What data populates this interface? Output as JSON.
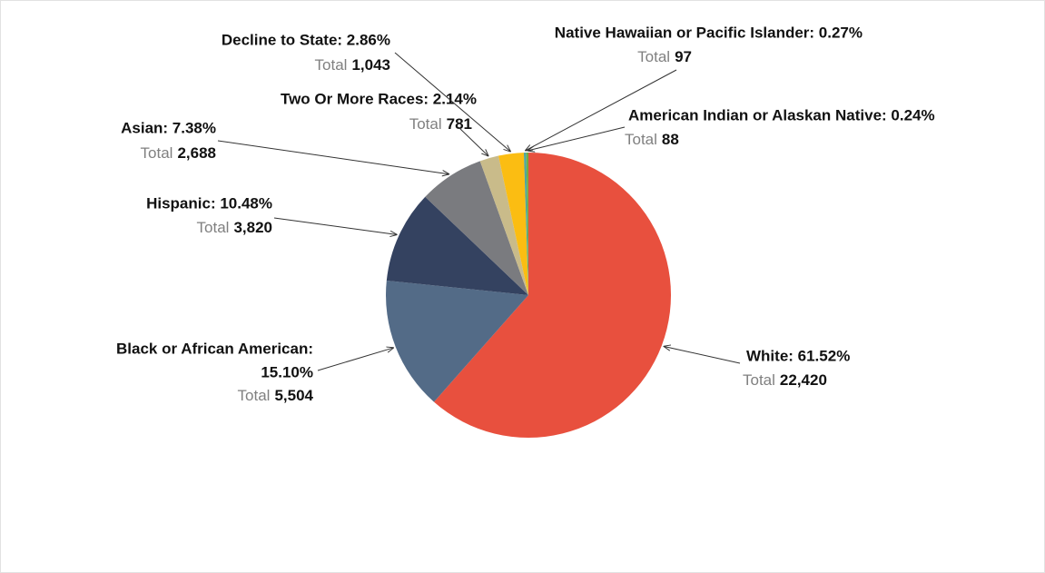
{
  "chart_data": {
    "type": "pie",
    "categories": [
      "White",
      "Black or African American",
      "Hispanic",
      "Asian",
      "Two Or More Races",
      "Decline to State",
      "Native Hawaiian or Pacific Islander",
      "American Indian or Alaskan Native"
    ],
    "values": [
      61.52,
      15.1,
      10.48,
      7.38,
      2.14,
      2.86,
      0.27,
      0.24
    ],
    "labels": [
      [
        "White: 61.52%"
      ],
      [
        "Black or African American:",
        "15.10%"
      ],
      [
        "Hispanic: 10.48%"
      ],
      [
        "Asian: 7.38%"
      ],
      [
        "Two Or More Races: 2.14%"
      ],
      [
        "Decline to State: 2.86%"
      ],
      [
        "Native Hawaiian or Pacific Islander: 0.27%"
      ],
      [
        "American Indian or Alaskan Native: 0.24%"
      ]
    ],
    "total_prefix": "Total",
    "totals": [
      22420,
      5504,
      3820,
      2688,
      781,
      1043,
      97,
      88
    ],
    "total_labels": [
      "22,420",
      "5,504",
      "3,820",
      "2,688",
      "781",
      "1,043",
      "97",
      "88"
    ],
    "colors": [
      "#e8503e",
      "#536b87",
      "#344260",
      "#7a7b7f",
      "#c9bb8a",
      "#fbbd12",
      "#4ea5a0",
      "#70ad47"
    ]
  }
}
